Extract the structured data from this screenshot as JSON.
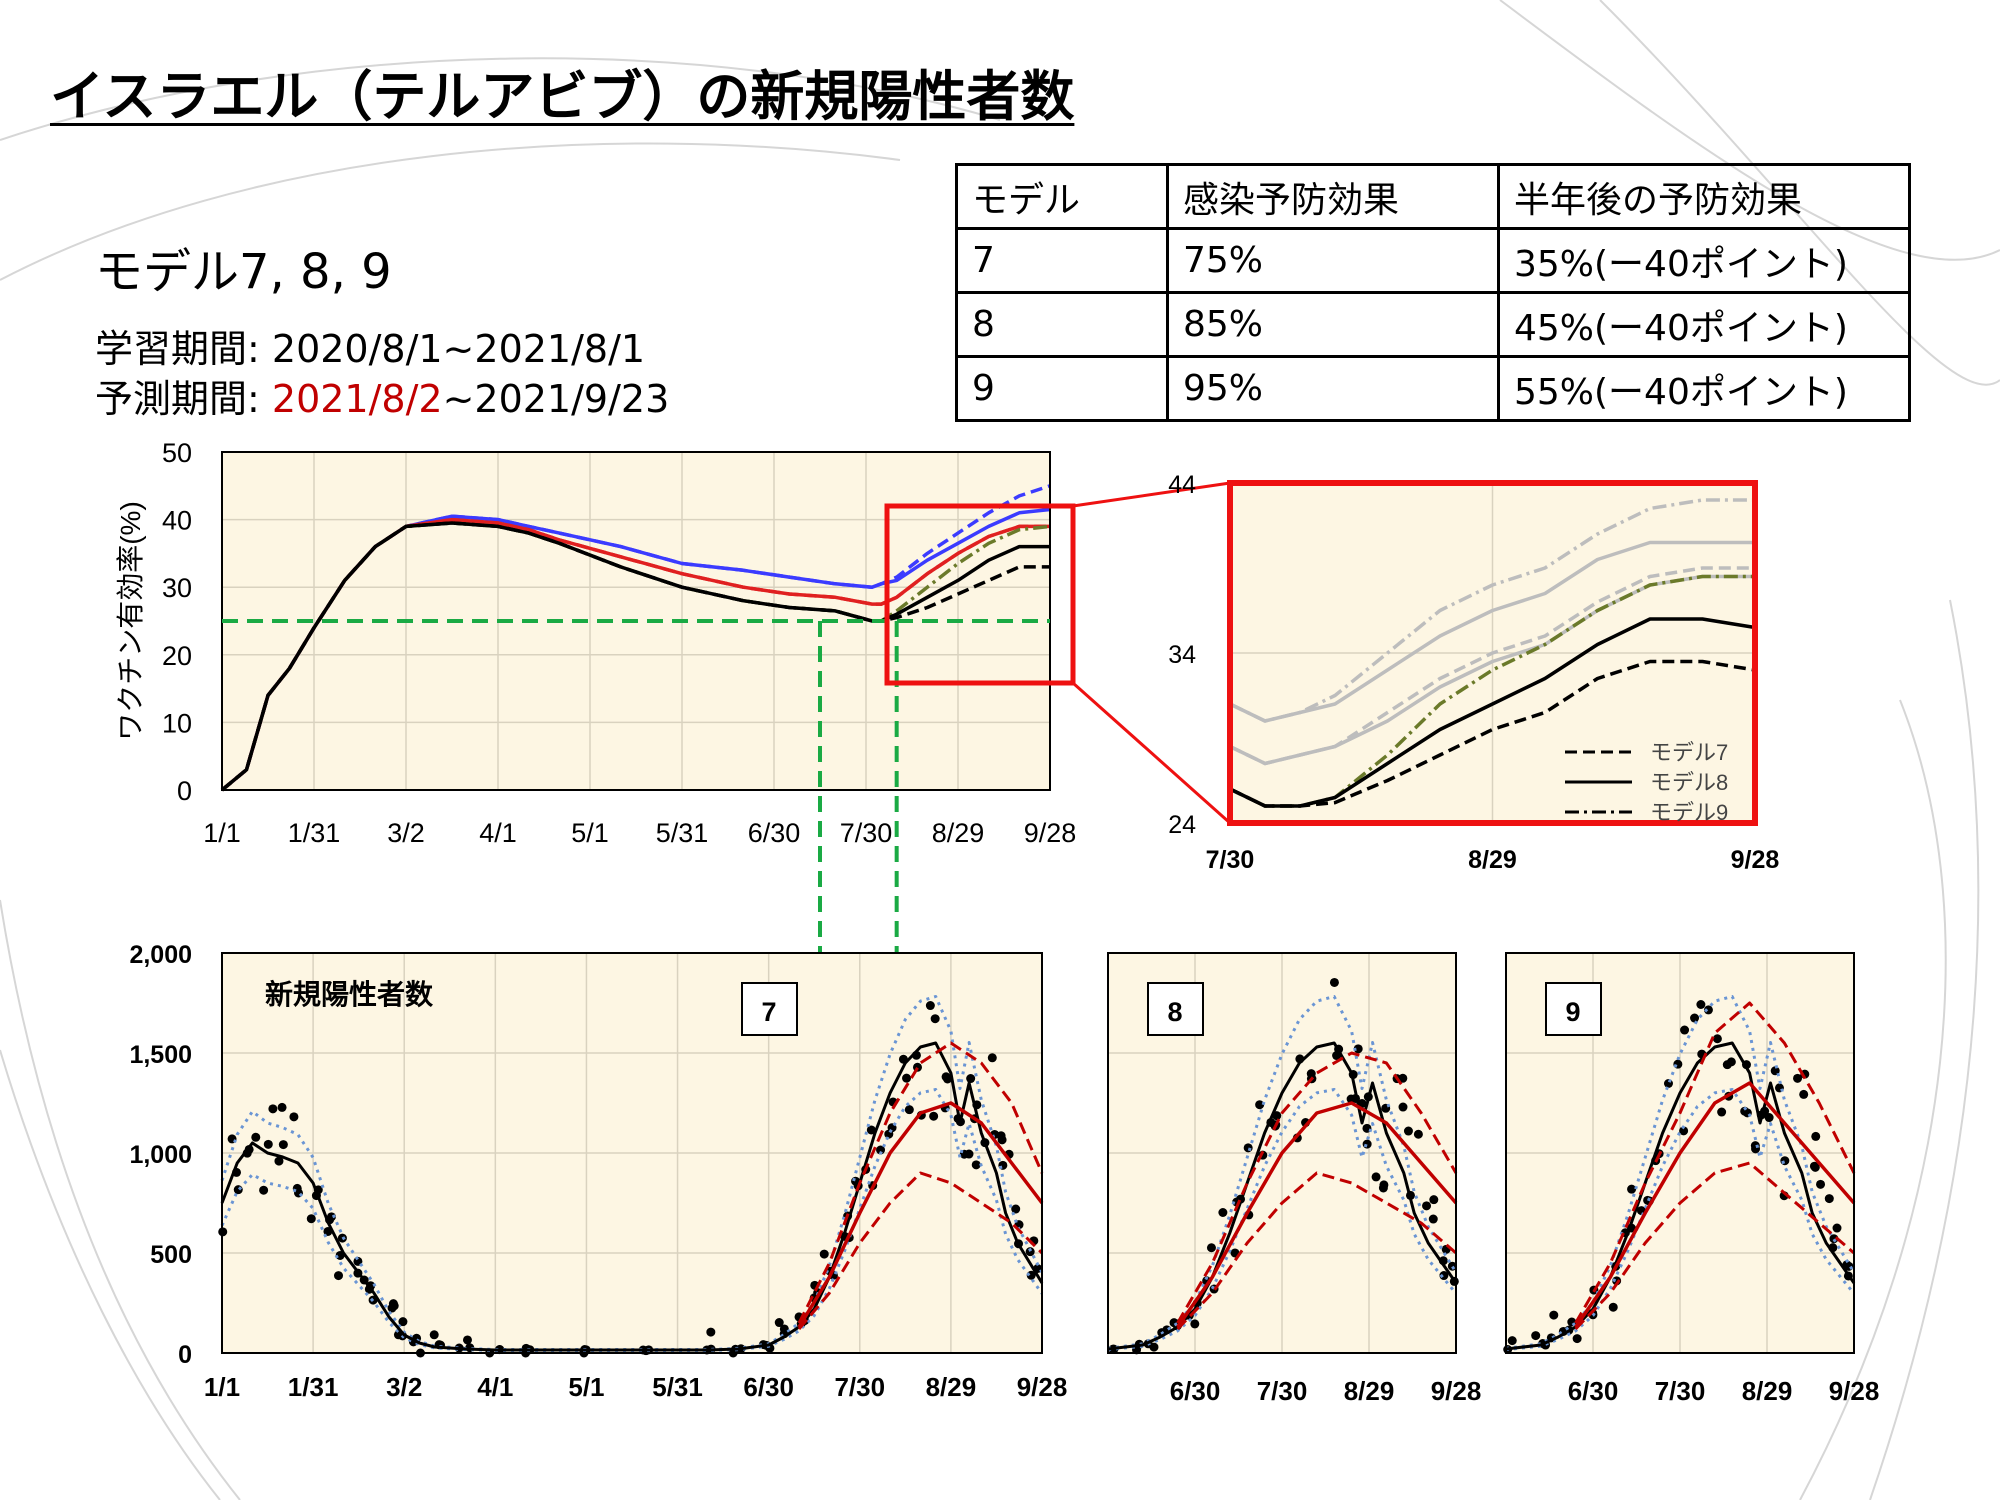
{
  "title": "イスラエル（テルアビブ）の新規陽性者数",
  "model_heading": "モデル7, 8, 9",
  "learning_period": {
    "label": "学習期間: ",
    "value": "2020/8/1~2021/8/1"
  },
  "prediction_period": {
    "label": "予測期間: ",
    "start": "2021/8/2",
    "rest": "~2021/9/23"
  },
  "table": {
    "headers": [
      "モデル",
      "感染予防効果",
      "半年後の予防効果"
    ],
    "rows": [
      [
        "7",
        "75%",
        "35%(ー40ポイント)"
      ],
      [
        "8",
        "85%",
        "45%(ー40ポイント)"
      ],
      [
        "9",
        "95%",
        "55%(ー40ポイント)"
      ]
    ]
  },
  "colors": {
    "plot_bg": "#fdf6e3",
    "grid": "#d9d2bf",
    "model7_blue": "#3b3bff",
    "model8_red": "#e02020",
    "baseline_black": "#000000",
    "baseline_olive": "#6b7a2a",
    "guide_green": "#1aaa44",
    "zoom_red": "#ee1111",
    "zoom_gray": "#bdbdbd",
    "ci_blue": "#6a95d4",
    "pred_red": "#c00000"
  },
  "chart_data": [
    {
      "id": "efficacy",
      "type": "line",
      "ylabel": "ワクチン有効率(%)",
      "ylim": [
        0,
        50
      ],
      "yticks": [
        "0",
        "10",
        "20",
        "30",
        "40",
        "50"
      ],
      "xticks": [
        "1/1",
        "1/31",
        "3/2",
        "4/1",
        "5/1",
        "5/31",
        "6/30",
        "7/30",
        "8/29",
        "9/28"
      ],
      "threshold": 25,
      "x": [
        0,
        8,
        15,
        22,
        30,
        40,
        50,
        60,
        75,
        90,
        100,
        110,
        130,
        150,
        170,
        185,
        200,
        212,
        215,
        220,
        230,
        240,
        250,
        260,
        270
      ],
      "series": [
        {
          "name": "model7",
          "style": "dashed",
          "color": "#3b3bff",
          "values": [
            0,
            3,
            14,
            18,
            24,
            31,
            36,
            39,
            40.5,
            40,
            39,
            38,
            36,
            33.5,
            32.5,
            31.5,
            30.5,
            30,
            30.5,
            31.5,
            35,
            38,
            41,
            43.5,
            45
          ]
        },
        {
          "name": "model8",
          "style": "solid",
          "color": "#3b3bff",
          "values": [
            0,
            3,
            14,
            18,
            24,
            31,
            36,
            39,
            40.5,
            40,
            39,
            38,
            36,
            33.5,
            32.5,
            31.5,
            30.5,
            30,
            30.5,
            31,
            34,
            36.5,
            39,
            41,
            41.5
          ]
        },
        {
          "name": "model7",
          "style": "dashed",
          "color": "#e02020",
          "values": [
            0,
            3,
            14,
            18,
            24,
            31,
            36,
            39,
            40,
            39.5,
            38.5,
            37,
            34.5,
            32,
            30,
            29,
            28.5,
            27.5,
            27.5,
            28.5,
            32,
            35,
            37.5,
            39,
            39
          ]
        },
        {
          "name": "model8",
          "style": "solid",
          "color": "#e02020",
          "values": [
            0,
            3,
            14,
            18,
            24,
            31,
            36,
            39,
            40,
            39.5,
            38.5,
            37,
            34.5,
            32,
            30,
            29,
            28.5,
            27.5,
            27.5,
            28.5,
            32,
            35,
            37.5,
            39,
            39
          ]
        },
        {
          "name": "model9",
          "style": "dashdot",
          "color": "#6b7a2a",
          "values": [
            0,
            3,
            14,
            18,
            24,
            31,
            36,
            39,
            39.5,
            39,
            38,
            36.5,
            33,
            30,
            28,
            27,
            26.5,
            25,
            25,
            26.5,
            30,
            33.5,
            36.5,
            38.5,
            39
          ]
        },
        {
          "name": "model8",
          "style": "solid",
          "color": "#000000",
          "values": [
            0,
            3,
            14,
            18,
            24,
            31,
            36,
            39,
            39.5,
            39,
            38,
            36.5,
            33,
            30,
            28,
            27,
            26.5,
            25,
            25,
            26,
            28.5,
            31,
            34,
            36,
            36
          ]
        },
        {
          "name": "model7",
          "style": "dashed",
          "color": "#000000",
          "values": [
            0,
            3,
            14,
            18,
            24,
            31,
            36,
            39,
            39.5,
            39,
            38,
            36.5,
            33,
            30,
            28,
            27,
            26.5,
            25,
            25,
            25.5,
            27,
            29,
            31,
            33,
            33
          ]
        }
      ]
    },
    {
      "id": "zoom",
      "type": "line",
      "ylim": [
        24,
        44
      ],
      "yticks": [
        "24",
        "34",
        "44"
      ],
      "xticks": [
        "7/30",
        "8/29",
        "9/28"
      ],
      "legend": [
        "モデル7",
        "モデル8",
        "モデル9"
      ],
      "legend_position": "bottom-right",
      "x": [
        0,
        4,
        8,
        12,
        18,
        24,
        30,
        36,
        42,
        48,
        54,
        60
      ],
      "series": [
        {
          "name": "モデル9",
          "style": "dashdot",
          "color": "#bdbdbd",
          "values": [
            31,
            30,
            30.5,
            31.5,
            34,
            36.5,
            38,
            39,
            41,
            42.5,
            43,
            43
          ]
        },
        {
          "name": "モデル8",
          "style": "solid",
          "color": "#bdbdbd",
          "values": [
            31,
            30,
            30.5,
            31,
            33,
            35,
            36.5,
            37.5,
            39.5,
            40.5,
            40.5,
            40.5
          ]
        },
        {
          "name": "モデル7",
          "style": "dashed",
          "color": "#bdbdbd",
          "values": [
            28.5,
            27.5,
            28,
            28.5,
            30.5,
            32.5,
            34,
            35,
            37,
            38.5,
            39,
            39
          ]
        },
        {
          "name": "モデル8",
          "style": "solid",
          "color": "#bdbdbd",
          "values": [
            28.5,
            27.5,
            28,
            28.5,
            30,
            32,
            33.5,
            34.5,
            36.5,
            38,
            38.5,
            38.5
          ]
        },
        {
          "name": "モデル9",
          "style": "dashdot",
          "color": "#6b7a2a",
          "values": [
            26,
            25,
            25,
            25.5,
            28,
            31,
            33,
            34.5,
            36.5,
            38,
            38.5,
            38.5
          ]
        },
        {
          "name": "モデル8",
          "style": "solid",
          "color": "#000000",
          "values": [
            26,
            25,
            25,
            25.5,
            27.5,
            29.5,
            31,
            32.5,
            34.5,
            36,
            36,
            35.5
          ]
        },
        {
          "name": "モデル7",
          "style": "dashed",
          "color": "#000000",
          "values": [
            26,
            25,
            25,
            25.2,
            26.5,
            28,
            29.5,
            30.5,
            32.5,
            33.5,
            33.5,
            33
          ]
        }
      ]
    },
    {
      "id": "cases_main",
      "type": "line",
      "label": "新規陽性者数",
      "box_label": "7",
      "ylim": [
        0,
        2000
      ],
      "yticks": [
        "0",
        "500",
        "1,000",
        "1,500",
        "2,000"
      ],
      "xticks": [
        "1/1",
        "1/31",
        "3/2",
        "4/1",
        "5/1",
        "5/31",
        "6/30",
        "7/30",
        "8/29",
        "9/28"
      ],
      "x_range": [
        0,
        270
      ],
      "observed": {
        "x": [
          0,
          5,
          10,
          15,
          20,
          25,
          30,
          35,
          40,
          45,
          50,
          55,
          60,
          65,
          70,
          80,
          90,
          100,
          120,
          140,
          160,
          170,
          180,
          185,
          190,
          195,
          200,
          205,
          210,
          215,
          220,
          225,
          230,
          235,
          240,
          243,
          246,
          250,
          255,
          258,
          262,
          266,
          270
        ],
        "y": [
          750,
          900,
          1000,
          1050,
          1000,
          950,
          850,
          700,
          500,
          400,
          300,
          200,
          100,
          60,
          40,
          30,
          20,
          20,
          20,
          20,
          20,
          20,
          50,
          100,
          150,
          250,
          400,
          600,
          850,
          1100,
          1300,
          1450,
          1500,
          1550,
          1450,
          1300,
          1150,
          1100,
          1200,
          900,
          700,
          500,
          450
        ]
      },
      "fitted": {
        "x": [
          0,
          5,
          10,
          15,
          20,
          25,
          30,
          35,
          40,
          45,
          50,
          55,
          60,
          65,
          70,
          80,
          90,
          100,
          120,
          140,
          160,
          170,
          180,
          185,
          190,
          195,
          200,
          205,
          210,
          215,
          220,
          225,
          230,
          235,
          240,
          243,
          246,
          250,
          255,
          258,
          262,
          266,
          270
        ],
        "y": [
          750,
          950,
          1050,
          1000,
          980,
          950,
          850,
          650,
          500,
          400,
          300,
          180,
          90,
          50,
          30,
          20,
          15,
          15,
          15,
          15,
          15,
          20,
          40,
          80,
          130,
          220,
          380,
          600,
          850,
          1100,
          1300,
          1450,
          1530,
          1550,
          1400,
          1150,
          1350,
          1100,
          900,
          700,
          550,
          450,
          350
        ]
      },
      "prediction_x": [
        190,
        200,
        210,
        220,
        230,
        240,
        250,
        260,
        270
      ],
      "prediction_center": [
        130,
        380,
        700,
        1000,
        1200,
        1250,
        1150,
        950,
        750
      ],
      "prediction_upper": [
        150,
        450,
        850,
        1200,
        1450,
        1550,
        1450,
        1250,
        900
      ],
      "prediction_lower": [
        120,
        300,
        550,
        750,
        900,
        850,
        750,
        650,
        500
      ]
    },
    {
      "id": "cases_model8",
      "type": "line",
      "box_label": "8",
      "ylim": [
        0,
        2000
      ],
      "xticks": [
        "6/30",
        "7/30",
        "8/29",
        "9/28"
      ],
      "x_range": [
        170,
        270
      ],
      "prediction_x": [
        190,
        200,
        210,
        220,
        230,
        240,
        250,
        260,
        270
      ],
      "prediction_center": [
        130,
        380,
        700,
        1000,
        1200,
        1250,
        1150,
        950,
        750
      ],
      "prediction_upper": [
        150,
        450,
        850,
        1200,
        1400,
        1500,
        1450,
        1200,
        900
      ],
      "prediction_lower": [
        120,
        300,
        550,
        750,
        900,
        850,
        750,
        650,
        500
      ]
    },
    {
      "id": "cases_model9",
      "type": "line",
      "box_label": "9",
      "ylim": [
        0,
        2000
      ],
      "xticks": [
        "6/30",
        "7/30",
        "8/29",
        "9/28"
      ],
      "x_range": [
        170,
        270
      ],
      "prediction_x": [
        190,
        200,
        210,
        220,
        230,
        240,
        250,
        260,
        270
      ],
      "prediction_center": [
        130,
        380,
        700,
        1000,
        1250,
        1350,
        1150,
        950,
        750
      ],
      "prediction_upper": [
        150,
        450,
        850,
        1200,
        1600,
        1750,
        1550,
        1250,
        900
      ],
      "prediction_lower": [
        120,
        300,
        550,
        750,
        900,
        950,
        800,
        650,
        500
      ]
    }
  ]
}
